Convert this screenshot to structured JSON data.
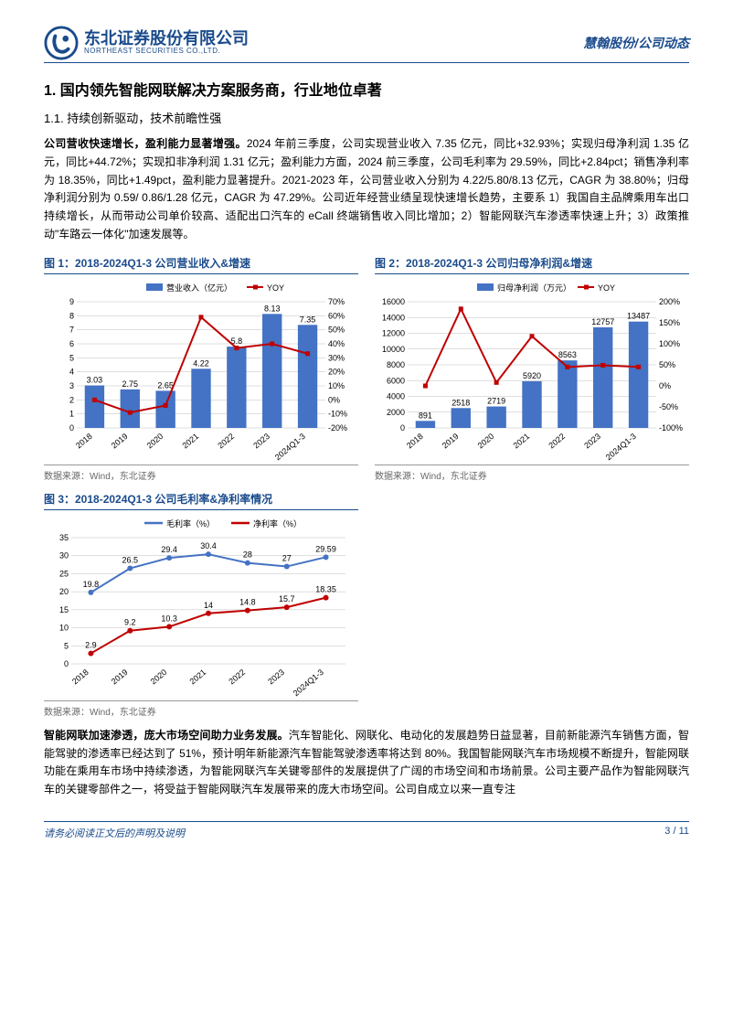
{
  "header": {
    "company_cn": "东北证券股份有限公司",
    "company_en": "NORTHEAST SECURITIES CO.,LTD.",
    "breadcrumb": "慧翰股份/公司动态",
    "logo_color": "#1a4b8c"
  },
  "section": {
    "h1": "1.  国内领先智能网联解决方案服务商，行业地位卓著",
    "h2": "1.1.  持续创新驱动，技术前瞻性强",
    "para1_bold": "公司营收快速增长，盈利能力显著增强。",
    "para1": "2024 年前三季度，公司实现营业收入 7.35 亿元，同比+32.93%；实现归母净利润 1.35 亿元，同比+44.72%；实现扣非净利润 1.31 亿元；盈利能力方面，2024 前三季度，公司毛利率为 29.59%，同比+2.84pct；销售净利率为 18.35%，同比+1.49pct，盈利能力显著提升。2021-2023 年，公司营业收入分别为 4.22/5.80/8.13 亿元，CAGR 为 38.80%；归母净利润分别为 0.59/ 0.86/1.28 亿元，CAGR 为 47.29%。公司近年经营业绩呈现快速增长趋势，主要系 1）我国自主品牌乘用车出口持续增长，从而带动公司单价较高、适配出口汽车的 eCall 终端销售收入同比增加；2）智能网联汽车渗透率快速上升；3）政策推动\"车路云一体化\"加速发展等。",
    "para2_bold": "智能网联加速渗透，庞大市场空间助力业务发展。",
    "para2": "汽车智能化、网联化、电动化的发展趋势日益显著，目前新能源汽车销售方面，智能驾驶的渗透率已经达到了 51%，预计明年新能源汽车智能驾驶渗透率将达到 80%。我国智能网联汽车市场规模不断提升，智能网联功能在乘用车市场中持续渗透，为智能网联汽车关键零部件的发展提供了广阔的市场空间和市场前景。公司主要产品作为智能网联汽车的关键零部件之一，将受益于智能网联汽车发展带来的庞大市场空间。公司自成立以来一直专注"
  },
  "chart1": {
    "title": "图 1：2018-2024Q1-3 公司营业收入&增速",
    "type": "bar+line",
    "legend_bar": "营业收入（亿元）",
    "legend_line": "YOY",
    "categories": [
      "2018",
      "2019",
      "2020",
      "2021",
      "2022",
      "2023",
      "2024Q1-3"
    ],
    "bar_values": [
      3.03,
      2.75,
      2.65,
      4.22,
      5.8,
      8.13,
      7.35
    ],
    "line_values": [
      0,
      -9,
      -4,
      59,
      37,
      40,
      33
    ],
    "y1_min": 0,
    "y1_max": 9,
    "y1_step": 1,
    "y2_min": -20,
    "y2_max": 70,
    "y2_step": 10,
    "bar_color": "#4472c4",
    "line_color": "#c00000",
    "grid_color": "#bfbfbf",
    "text_color": "#000000",
    "label_fontsize": 9,
    "source": "数据来源：Wind，东北证券"
  },
  "chart2": {
    "title": "图 2：2018-2024Q1-3 公司归母净利润&增速",
    "type": "bar+line",
    "legend_bar": "归母净利润（万元）",
    "legend_line": "YOY",
    "categories": [
      "2018",
      "2019",
      "2020",
      "2021",
      "2022",
      "2023",
      "2024Q1-3"
    ],
    "bar_values": [
      891,
      2518,
      2719,
      5920,
      8563,
      12757,
      13487
    ],
    "line_values": [
      0,
      183,
      8,
      118,
      45,
      49,
      45
    ],
    "y1_min": 0,
    "y1_max": 16000,
    "y1_step": 2000,
    "y2_min": -100,
    "y2_max": 200,
    "y2_step": 50,
    "bar_color": "#4472c4",
    "line_color": "#c00000",
    "grid_color": "#bfbfbf",
    "text_color": "#000000",
    "label_fontsize": 9,
    "source": "数据来源：Wind，东北证券"
  },
  "chart3": {
    "title": "图 3：2018-2024Q1-3 公司毛利率&净利率情况",
    "type": "line2",
    "legend1": "毛利率（%）",
    "legend2": "净利率（%）",
    "categories": [
      "2018",
      "2019",
      "2020",
      "2021",
      "2022",
      "2023",
      "2024Q1-3"
    ],
    "line1_values": [
      19.8,
      26.5,
      29.4,
      30.4,
      28,
      27,
      29.59
    ],
    "line2_values": [
      2.9,
      9.2,
      10.3,
      14,
      14.8,
      15.7,
      18.35
    ],
    "y_min": 0,
    "y_max": 35,
    "y_step": 5,
    "line1_color": "#4472c4",
    "line2_color": "#c00000",
    "grid_color": "#bfbfbf",
    "text_color": "#000000",
    "label_fontsize": 9,
    "source": "数据来源：Wind，东北证券"
  },
  "footer": {
    "disclaimer": "请务必阅读正文后的声明及说明",
    "page": "3 / 11"
  }
}
